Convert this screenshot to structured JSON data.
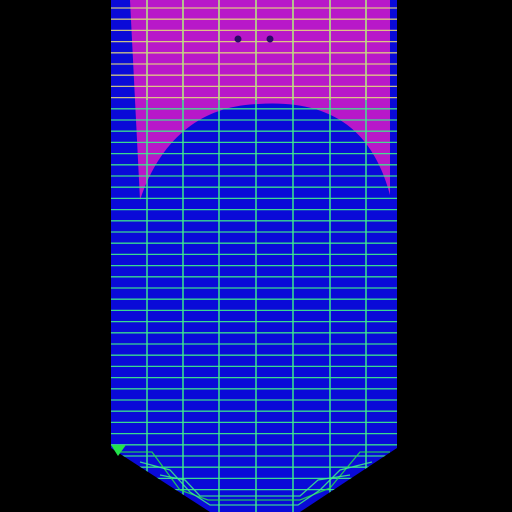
{
  "scene": {
    "background_color": "#000000",
    "shield_base_color": "#0a0ad8",
    "magenta_glow_color": "#c81ac8",
    "grid_line_color": "#3ef08a",
    "grid_line_highlight_color": "#e6e07a",
    "edge_accent_color": "#23e34a",
    "markers": [
      "dot-marker",
      "dot-marker"
    ]
  }
}
